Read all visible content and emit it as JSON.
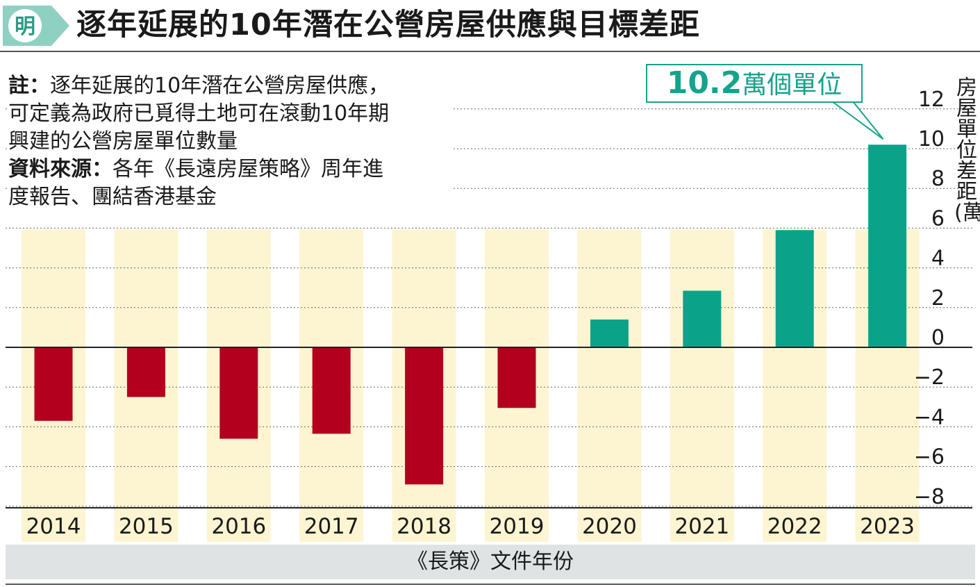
{
  "header": {
    "logo_char": "明",
    "title": "逐年延展的10年潛在公營房屋供應與目標差距"
  },
  "notes": {
    "note_label": "註：",
    "note_line1": "逐年延展的10年潛在公營房屋供應，",
    "note_line2": "可定義為政府已覓得土地可在滾動10年期",
    "note_line3": "興建的公營房屋單位數量",
    "source_label": "資料來源：",
    "source_line1": "各年《長遠房屋策略》周年進",
    "source_line2": "度報告、團結香港基金"
  },
  "callout": {
    "value": "10.2",
    "unit": "萬個單位"
  },
  "colors": {
    "positive": "#0aa38a",
    "negative": "#b3001e",
    "column_band": "#fdf5d2",
    "accent": "#14a38b"
  },
  "chart_data": {
    "type": "bar",
    "categories": [
      "2014",
      "2015",
      "2016",
      "2017",
      "2018",
      "2019",
      "2020",
      "2021",
      "2022",
      "2023"
    ],
    "values": [
      -3.7,
      -2.5,
      -4.6,
      -4.35,
      -6.9,
      -3.05,
      1.4,
      2.85,
      5.9,
      10.2
    ],
    "title": "逐年延展的10年潛在公營房屋供應與目標差距",
    "xlabel": "《長策》文件年份",
    "ylabel": "房屋單位差距(萬)",
    "ylim": [
      -8,
      12
    ],
    "yticks": [
      12,
      10,
      8,
      6,
      4,
      2,
      0,
      -2,
      -4,
      -6,
      -8
    ],
    "ytick_labels": [
      "12",
      "10",
      "8",
      "6",
      "4",
      "2",
      "0",
      "−2",
      "−4",
      "−6",
      "−8"
    ],
    "grid": true,
    "legend": "none",
    "annotation": "10.2萬個單位"
  }
}
